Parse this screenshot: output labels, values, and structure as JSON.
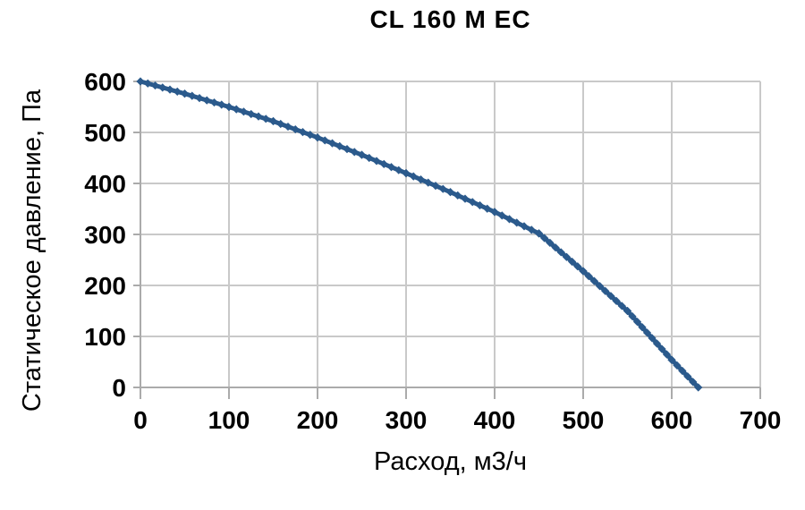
{
  "chart_data": {
    "type": "line",
    "title": "CL 160 M EC",
    "xlabel": "Расход, м3/ч",
    "ylabel": "Статическое давление, Па",
    "xlim": [
      0,
      700
    ],
    "ylim": [
      0,
      600
    ],
    "xticks": [
      0,
      100,
      200,
      300,
      400,
      500,
      600,
      700
    ],
    "yticks": [
      0,
      100,
      200,
      300,
      400,
      500,
      600
    ],
    "grid": true,
    "legend": false,
    "series": [
      {
        "name": "CL 160 M EC",
        "color": "#2B5A8C",
        "points": [
          [
            0,
            600
          ],
          [
            50,
            576
          ],
          [
            100,
            550
          ],
          [
            150,
            522
          ],
          [
            200,
            490
          ],
          [
            250,
            456
          ],
          [
            300,
            420
          ],
          [
            350,
            383
          ],
          [
            400,
            344
          ],
          [
            450,
            302
          ],
          [
            500,
            228
          ],
          [
            550,
            150
          ],
          [
            600,
            54
          ],
          [
            630,
            0
          ]
        ]
      }
    ]
  },
  "colors": {
    "curve": "#2B5A8C",
    "grid": "#C9C9C9",
    "axis": "#ABABAB",
    "text": "#000000",
    "background": "#FFFFFF"
  }
}
